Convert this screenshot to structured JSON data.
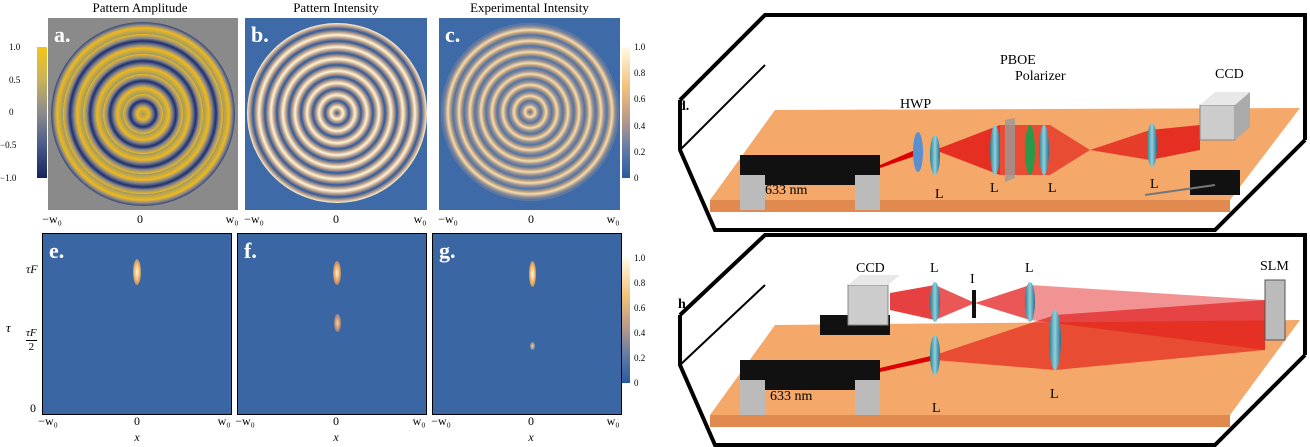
{
  "panels": [
    {
      "letter": "a.",
      "title": "Pattern Amplitude"
    },
    {
      "letter": "b.",
      "title": "Pattern Intensity"
    },
    {
      "letter": "c.",
      "title": "Experimental Intensity"
    },
    {
      "letter": "d."
    },
    {
      "letter": "e."
    },
    {
      "letter": "f."
    },
    {
      "letter": "g."
    },
    {
      "letter": "h."
    }
  ],
  "colorbar_amplitude": [
    "1.0",
    "0.5",
    "0",
    "−0.5",
    "−1.0"
  ],
  "colorbar_intensity": [
    "1.0",
    "0.8",
    "0.6",
    "0.4",
    "0.2",
    "0"
  ],
  "x_ticks": [
    "−w₀",
    "0",
    "w₀"
  ],
  "x_label": "x",
  "y_label": "τ",
  "y_ticks": {
    "top": "τF",
    "half_numerator": "τF",
    "half_denominator": "2",
    "zero": "0"
  },
  "setup_d": {
    "hwp": "HWP",
    "pboe": "PBOE",
    "polarizer": "Polarizer",
    "ccd": "CCD",
    "laser": "633 nm",
    "lens": "L"
  },
  "setup_h": {
    "ccd": "CCD",
    "lens": "L",
    "iris": "I",
    "slm": "SLM",
    "laser": "633 nm"
  }
}
